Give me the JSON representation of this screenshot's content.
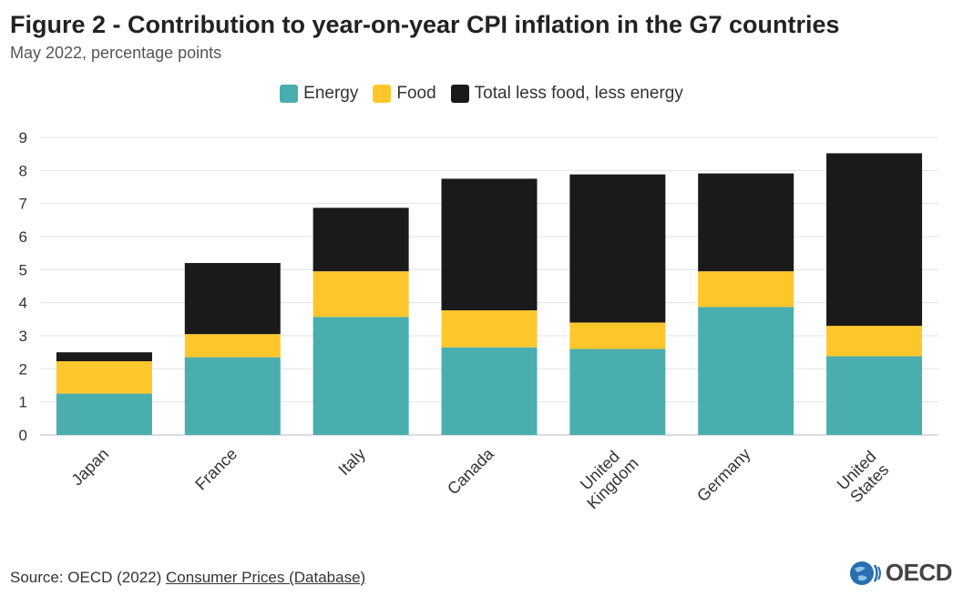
{
  "chart_data": {
    "type": "bar",
    "stacked": true,
    "title": "Figure 2 - Contribution to year-on-year CPI inflation in the G7 countries",
    "subtitle": "May 2022, percentage points",
    "categories": [
      "Japan",
      "France",
      "Italy",
      "Canada",
      "United Kingdom",
      "Germany",
      "United States"
    ],
    "category_lines": [
      [
        "Japan"
      ],
      [
        "France"
      ],
      [
        "Italy"
      ],
      [
        "Canada"
      ],
      [
        "United",
        "Kingdom"
      ],
      [
        "Germany"
      ],
      [
        "United",
        "States"
      ]
    ],
    "series": [
      {
        "name": "Energy",
        "color": "#4aaeae",
        "values": [
          1.25,
          2.35,
          3.57,
          2.65,
          2.6,
          3.87,
          2.38
        ]
      },
      {
        "name": "Food",
        "color": "#ffc72c",
        "values": [
          0.98,
          0.7,
          1.38,
          1.12,
          0.8,
          1.08,
          0.92
        ]
      },
      {
        "name": "Total less food, less energy",
        "color": "#1a1a1a",
        "values": [
          0.27,
          2.15,
          1.92,
          3.98,
          4.48,
          2.96,
          5.22
        ]
      }
    ],
    "ylim": [
      0,
      9
    ],
    "yticks": [
      0,
      1,
      2,
      3,
      4,
      5,
      6,
      7,
      8,
      9
    ],
    "xlabel": "",
    "ylabel": "",
    "legend": "top-center",
    "grid": true
  },
  "source": {
    "prefix": "Source: OECD (2022) ",
    "link_text": "Consumer Prices (Database)"
  },
  "logo": {
    "text": "OECD"
  }
}
